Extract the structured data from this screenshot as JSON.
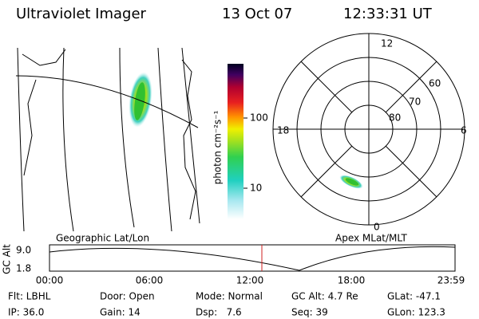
{
  "header": {
    "title": "Ultraviolet Imager",
    "date": "13 Oct 07",
    "time": "12:33:31 UT"
  },
  "colorbar": {
    "label": "photon cm⁻²s⁻¹",
    "ticks": [
      "100",
      "10"
    ]
  },
  "map": {
    "label": "Geographic Lat/Lon"
  },
  "polar": {
    "label": "Apex MLat/MLT",
    "mlt_labels": [
      "12",
      "18",
      "6",
      "0"
    ],
    "lat_labels": [
      "60",
      "70",
      "80"
    ]
  },
  "altitude_plot": {
    "ylabel": "GC Alt",
    "yticks": [
      "9.0",
      "1.8"
    ],
    "xticks": [
      "00:00",
      "06:00",
      "12:00",
      "18:00",
      "23:59"
    ]
  },
  "info": {
    "rows": [
      [
        "Flt: LBHL",
        "Door: Open",
        "Mode: Normal",
        "GC Alt: 4.7 Re",
        "GLat: -47.1"
      ],
      [
        "IP: 36.0",
        "Gain: 14",
        "Dsp:   7.6",
        "Seq: 39",
        "GLon: 123.3"
      ]
    ]
  }
}
